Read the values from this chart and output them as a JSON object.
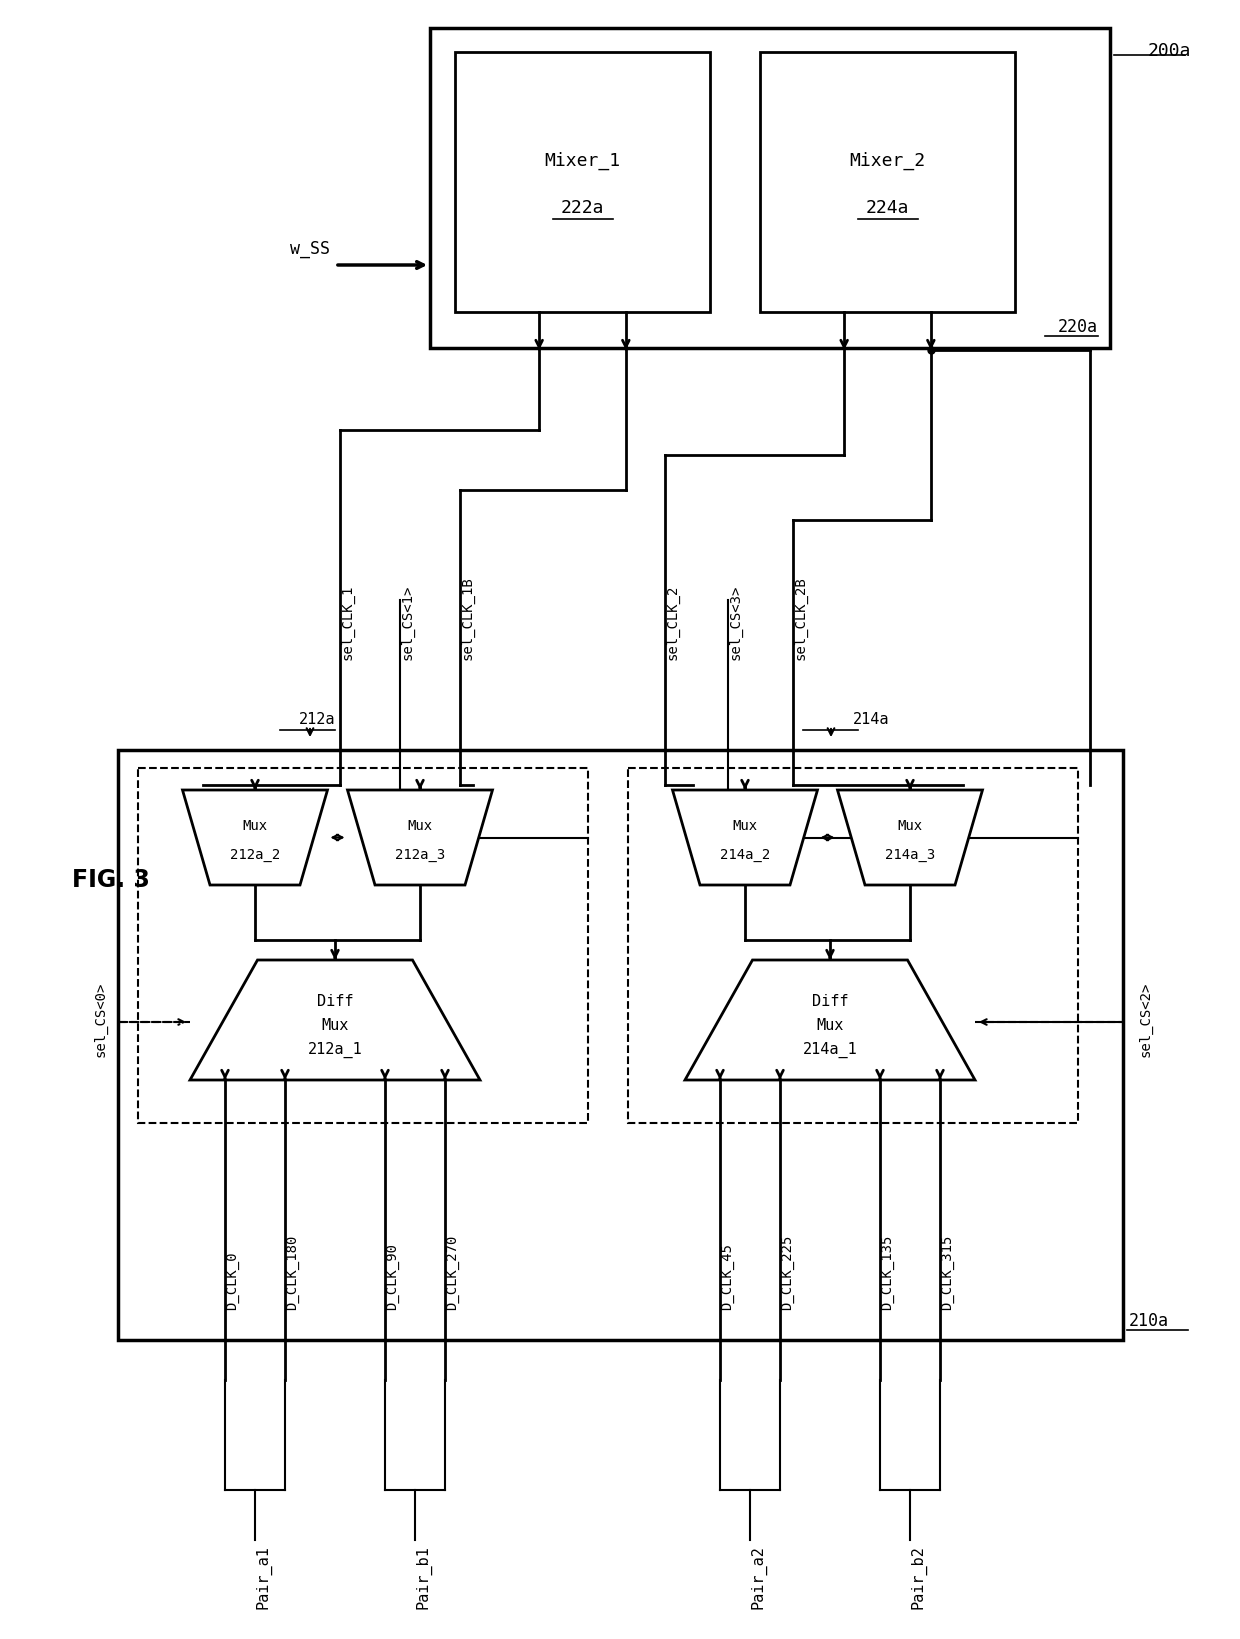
{
  "bg_color": "#ffffff",
  "fig_label": "FIG. 3",
  "box_200a_label": "200a",
  "box_220a_label": "220a",
  "mixer1_line1": "Mixer_1",
  "mixer1_line2": "222a",
  "mixer2_line1": "Mixer_2",
  "mixer2_line2": "224a",
  "w_ss_label": "w_SS",
  "box_210a_label": "210a",
  "label_212a": "212a",
  "label_214a": "214a",
  "diff_mux1_l1": "Diff",
  "diff_mux1_l2": "Mux",
  "diff_mux1_l3": "212a_1",
  "diff_mux2_l1": "Diff",
  "diff_mux2_l2": "Mux",
  "diff_mux2_l3": "214a_1",
  "mux_212a_2_l1": "Mux",
  "mux_212a_2_l2": "212a_2",
  "mux_212a_3_l1": "Mux",
  "mux_212a_3_l2": "212a_3",
  "mux_214a_2_l1": "Mux",
  "mux_214a_2_l2": "214a_2",
  "mux_214a_3_l1": "Mux",
  "mux_214a_3_l2": "214a_3",
  "sel_clk1": "sel_CLK_1",
  "sel_cs1": "sel_CS<1>",
  "sel_clk1b": "sel_CLK_1B",
  "sel_clk2": "sel_CLK_2",
  "sel_cs3": "sel_CS<3>",
  "sel_clk2b": "sel_CLK_2B",
  "sel_cs0": "sel_CS<0>",
  "sel_cs2": "sel_CS<2>",
  "d_clk_0": "D_CLK_0",
  "d_clk_180": "D_CLK_180",
  "d_clk_90": "D_CLK_90",
  "d_clk_270": "D_CLK_270",
  "d_clk_45": "D_CLK_45",
  "d_clk_225": "D_CLK_225",
  "d_clk_135": "D_CLK_135",
  "d_clk_315": "D_CLK_315",
  "pair_a1": "Pair_a1",
  "pair_b1": "Pair_b1",
  "pair_a2": "Pair_a2",
  "pair_b2": "Pair_b2"
}
